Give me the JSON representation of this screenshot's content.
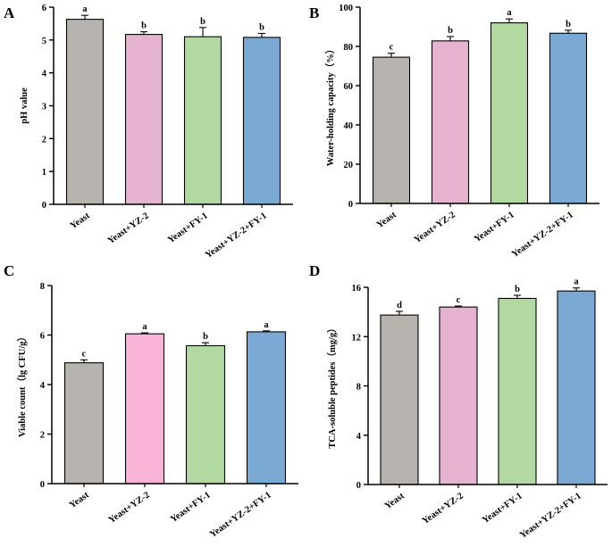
{
  "colors": {
    "yeast": "#b6b2ae",
    "yeast_yz2_a": "#e5b3d0",
    "yeast_fy1": "#b2d9a2",
    "yeast_yz2_fy1": "#7aaad3",
    "yeast_yz2_c": "#f9b3d6"
  },
  "chart_data": [
    {
      "panel": "A",
      "type": "bar",
      "title": "",
      "xlabel": "",
      "ylabel": "pH value",
      "ylim": [
        0,
        6
      ],
      "yticks": [
        0,
        1,
        2,
        3,
        4,
        5,
        6
      ],
      "categories": [
        "Yeast",
        "Yeast+YZ-2",
        "Yeast+FY-1",
        "Yeast+YZ-2+FY-1"
      ],
      "values": [
        5.63,
        5.17,
        5.1,
        5.08
      ],
      "errors": [
        0.12,
        0.08,
        0.28,
        0.12
      ],
      "significance": [
        "a",
        "b",
        "b",
        "b"
      ],
      "colors": [
        "#b6b2ae",
        "#e5b3d0",
        "#b2d9a2",
        "#7aaad3"
      ]
    },
    {
      "panel": "B",
      "type": "bar",
      "title": "",
      "xlabel": "",
      "ylabel": "Water-holding capacity（%）",
      "ylim": [
        0,
        100
      ],
      "yticks": [
        0,
        20,
        40,
        60,
        80,
        100
      ],
      "categories": [
        "Yeast",
        "Yeast+YZ-2",
        "Yeast+FY-1",
        "Yeast+YZ-2+FY-1"
      ],
      "values": [
        74.5,
        82.8,
        92.0,
        86.7
      ],
      "errors": [
        2.0,
        2.2,
        2.0,
        1.5
      ],
      "significance": [
        "c",
        "b",
        "a",
        "b"
      ],
      "colors": [
        "#b6b2ae",
        "#e5b3d0",
        "#b2d9a2",
        "#7aaad3"
      ]
    },
    {
      "panel": "C",
      "type": "bar",
      "title": "",
      "xlabel": "",
      "ylabel": "Viable count（lg CFU/g）",
      "ylim": [
        0,
        8
      ],
      "yticks": [
        0,
        2,
        4,
        6,
        8
      ],
      "categories": [
        "Yeast",
        "Yeast+YZ-2",
        "Yeast+FY-1",
        "Yeast+YZ-2+FY-1"
      ],
      "values": [
        4.88,
        6.05,
        5.57,
        6.13
      ],
      "errors": [
        0.12,
        0.04,
        0.12,
        0.04
      ],
      "significance": [
        "c",
        "a",
        "b",
        "a"
      ],
      "colors": [
        "#b6b2ae",
        "#f9b3d6",
        "#b2d9a2",
        "#7aaad3"
      ]
    },
    {
      "panel": "D",
      "type": "bar",
      "title": "",
      "xlabel": "",
      "ylabel": "TCA-soluble peptides（mg/g）",
      "ylim": [
        0,
        16
      ],
      "yticks": [
        0,
        4,
        8,
        12,
        16
      ],
      "categories": [
        "Yeast",
        "Yeast+YZ-2",
        "Yeast+FY-1",
        "Yeast+YZ-2+FY-1"
      ],
      "values": [
        13.75,
        14.4,
        15.1,
        15.7
      ],
      "errors": [
        0.3,
        0.08,
        0.25,
        0.25
      ],
      "significance": [
        "d",
        "c",
        "b",
        "a"
      ],
      "colors": [
        "#b6b2ae",
        "#e5b3d0",
        "#b2d9a2",
        "#7aaad3"
      ]
    }
  ]
}
